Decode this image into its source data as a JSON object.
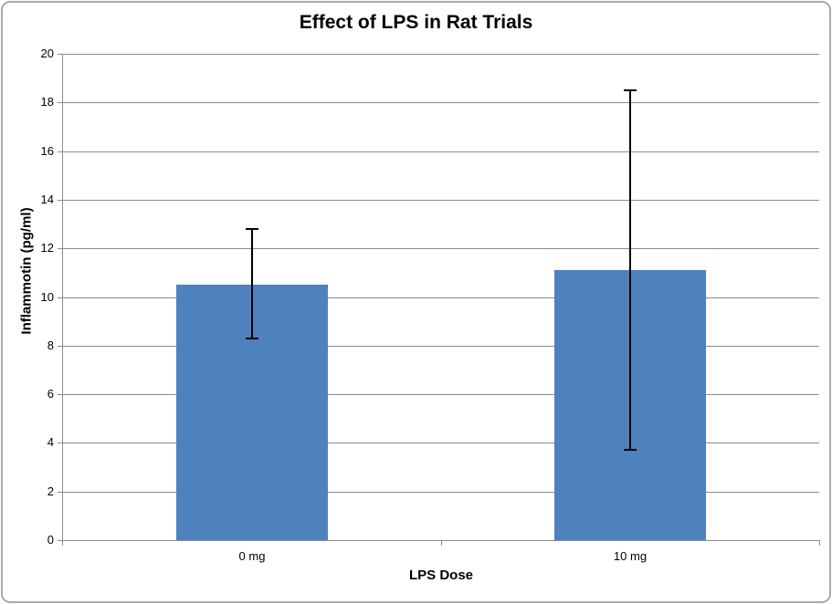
{
  "chart_data": {
    "type": "bar",
    "title": "Effect of LPS in Rat Trials",
    "xlabel": "LPS Dose",
    "ylabel": "Inflammotin (pg/ml)",
    "categories": [
      "0 mg",
      "10 mg"
    ],
    "values": [
      10.5,
      11.1
    ],
    "error_bars": [
      {
        "low": 8.3,
        "high": 12.8
      },
      {
        "low": 3.7,
        "high": 18.5
      }
    ],
    "ylim": [
      0,
      20
    ],
    "ytick_step": 2,
    "grid": "horizontal-major",
    "legend": "none",
    "colors": {
      "bar": "#4F81BD",
      "gridline": "#8C8C8C",
      "axis": "#8C8C8C",
      "error_bar": "#000000",
      "text": "#000000",
      "chart_border": "#A9A9A9",
      "background": "#FFFFFF"
    }
  }
}
